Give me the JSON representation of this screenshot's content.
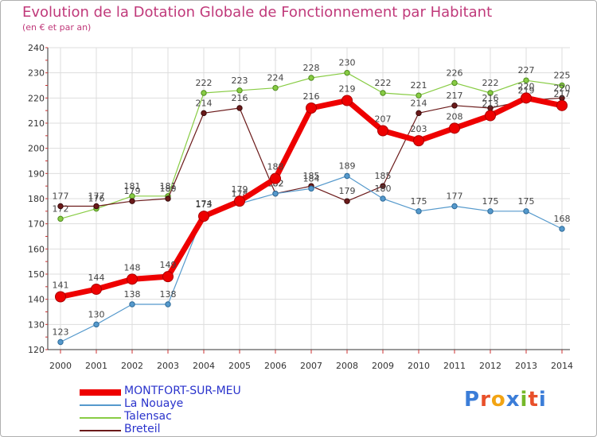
{
  "title": "Evolution de la Dotation Globale de Fonctionnement par Habitant",
  "subtitle": "(en € et par an)",
  "logo": "Proxiti",
  "chart_data": {
    "type": "line",
    "title": "Evolution de la Dotation Globale de Fonctionnement par Habitant",
    "subtitle": "(en € et par an)",
    "xlabel": "",
    "ylabel": "",
    "x": [
      "2000",
      "2001",
      "2002",
      "2003",
      "2004",
      "2005",
      "2006",
      "2007",
      "2008",
      "2009",
      "2010",
      "2011",
      "2012",
      "2013",
      "2014"
    ],
    "ylim": [
      120,
      240
    ],
    "yticks": [
      120,
      130,
      140,
      150,
      160,
      170,
      180,
      190,
      200,
      210,
      220,
      230,
      240
    ],
    "grid": true,
    "legend": "bottom-left",
    "series": [
      {
        "name": "Talensac",
        "color": "#88cc44",
        "values": [
          172,
          176,
          181,
          181,
          222,
          223,
          224,
          228,
          230,
          222,
          221,
          226,
          222,
          227,
          225
        ]
      },
      {
        "name": "Breteil",
        "color": "#6b1a1a",
        "values": [
          177,
          177,
          179,
          180,
          214,
          216,
          182,
          185,
          179,
          185,
          214,
          217,
          216,
          219,
          220
        ]
      },
      {
        "name": "La Nouaye",
        "color": "#5599cc",
        "values": [
          123,
          130,
          138,
          138,
          174,
          178,
          182,
          184,
          189,
          180,
          175,
          177,
          175,
          175,
          168
        ]
      },
      {
        "name": "MONTFORT-SUR-MEU",
        "color": "#ee0000",
        "values": [
          141,
          144,
          148,
          149,
          173,
          179,
          188,
          216,
          219,
          207,
          203,
          208,
          213,
          220,
          217
        ]
      }
    ]
  }
}
